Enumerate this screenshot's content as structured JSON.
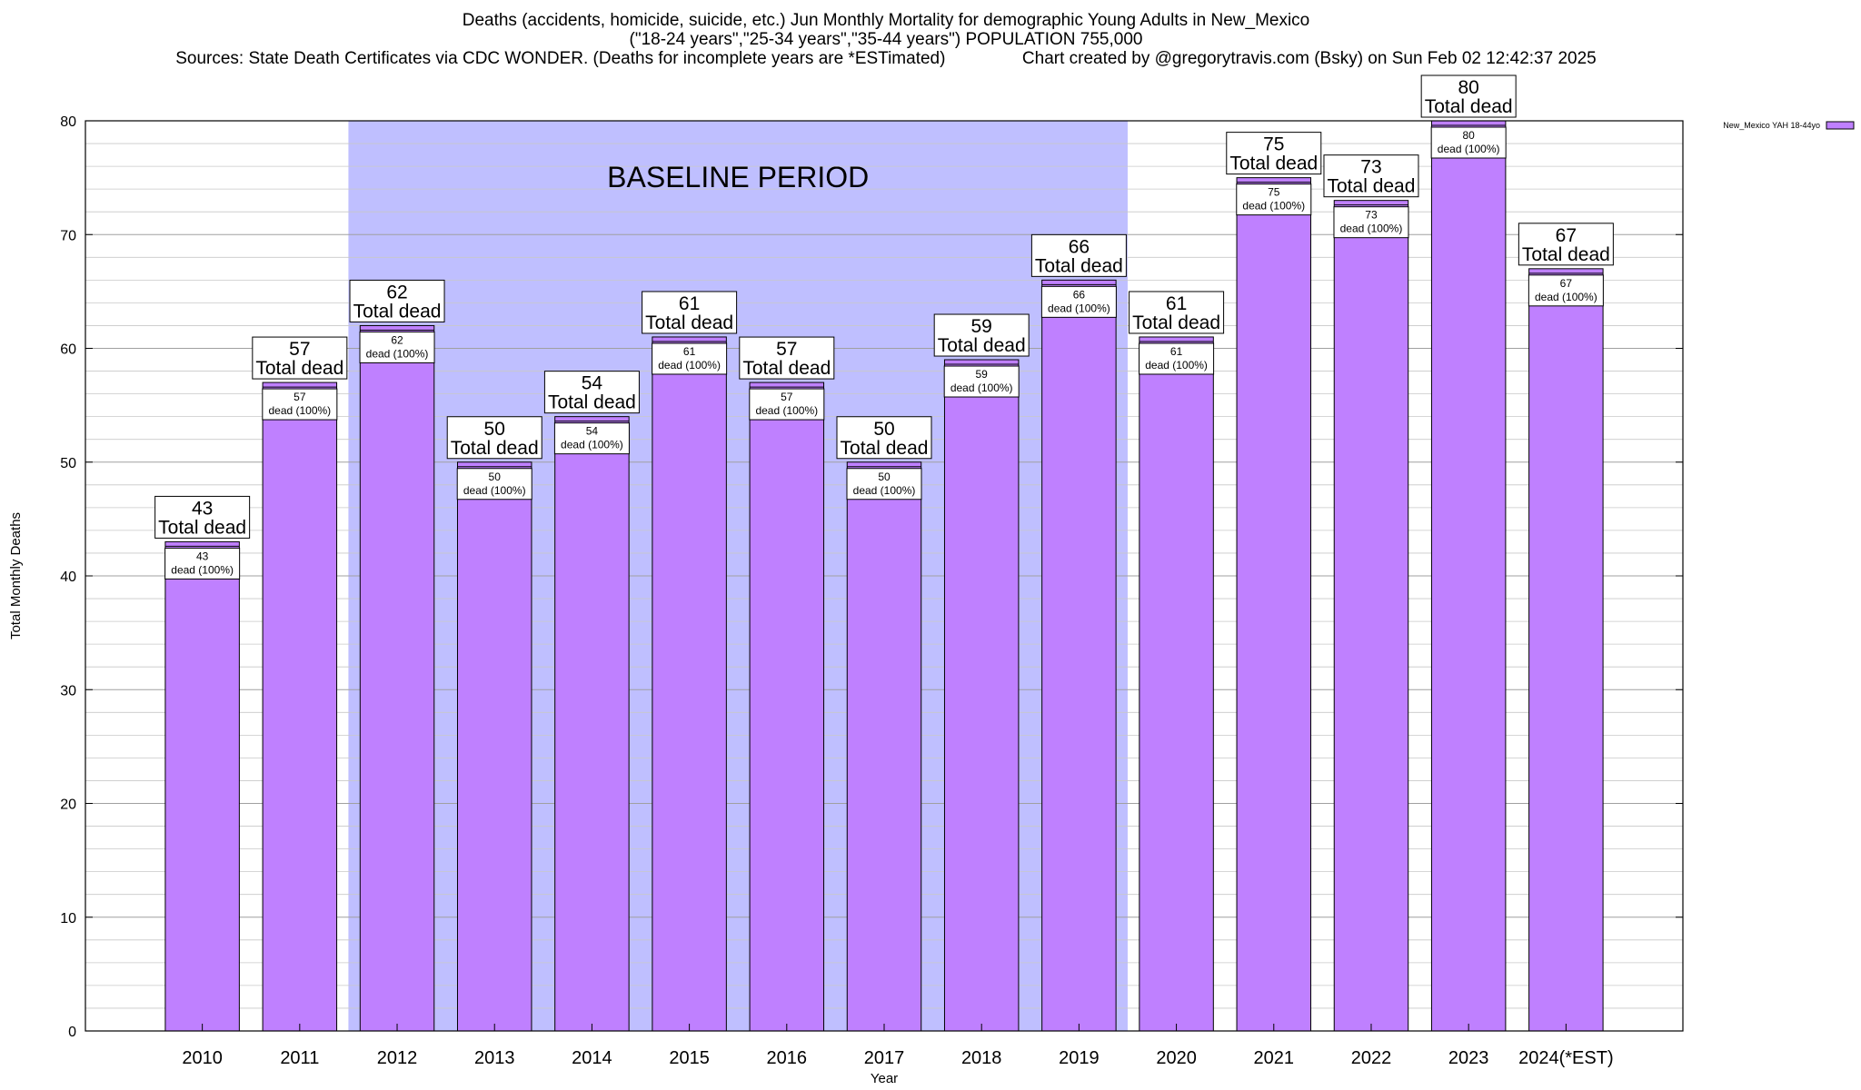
{
  "chart_data": {
    "type": "bar",
    "title": "Deaths (accidents, homicide, suicide, etc.) Jun Monthly Mortality for demographic Young Adults in New_Mexico",
    "subtitle": "(\"18-24 years\",\"25-34 years\",\"35-44 years\") POPULATION 755,000",
    "source": "Sources: State Death Certificates via CDC WONDER. (Deaths for incomplete years are *ESTimated)",
    "credit": "Chart created by @gregorytravis.com (Bsky) on Sun Feb 02 12:42:37 2025",
    "xlabel": "Year",
    "ylabel": "Total Monthly Deaths",
    "ylim": [
      0,
      80
    ],
    "y_ticks": [
      0,
      10,
      20,
      30,
      40,
      50,
      60,
      70,
      80
    ],
    "grid": true,
    "legend_position": "top-right",
    "categories": [
      "2010",
      "2011",
      "2012",
      "2013",
      "2014",
      "2015",
      "2016",
      "2017",
      "2018",
      "2019",
      "2020",
      "2021",
      "2022",
      "2023",
      "2024(*EST)"
    ],
    "series": [
      {
        "name": "New_Mexico YAH 18-44yo",
        "color": "#bf80ff",
        "values": [
          43,
          57,
          62,
          50,
          54,
          61,
          57,
          50,
          59,
          66,
          61,
          75,
          73,
          80,
          67
        ]
      }
    ],
    "total_label_suffix": "Total dead",
    "inner_label_suffix": "dead (100%)",
    "baseline": {
      "label": "BASELINE PERIOD",
      "from": "2012",
      "to": "2019",
      "color": "#bfbfff"
    }
  }
}
